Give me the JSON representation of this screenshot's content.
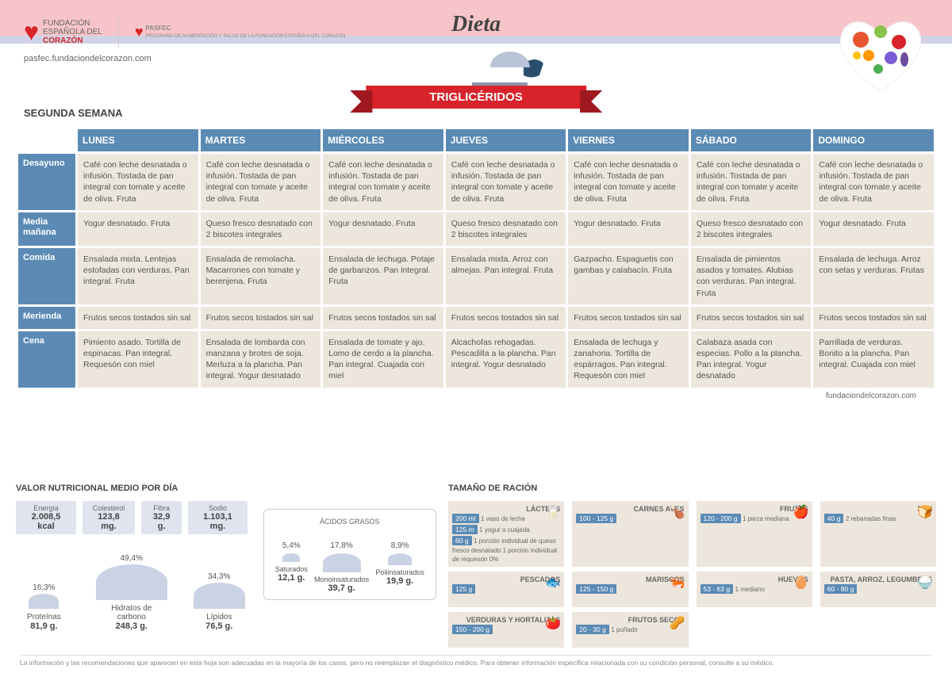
{
  "header": {
    "org1_line1": "FUNDACIÓN",
    "org1_line2": "ESPAÑOLA DEL",
    "org1_line3": "CORAZÓN",
    "org2_name": "PASFEC",
    "org2_sub": "PROGRAMA DE ALIMENTACIÓN Y SALUD DE LA FUNDACIÓN ESPAÑOLA DEL CORAZÓN",
    "url": "pasfec.fundaciondelcorazon.com",
    "title": "Dieta",
    "subtitle": "TRIGLICÉRIDOS",
    "week": "SEGUNDA SEMANA"
  },
  "days": [
    "LUNES",
    "MARTES",
    "MIÉRCOLES",
    "JUEVES",
    "VIERNES",
    "SÁBADO",
    "DOMINGO"
  ],
  "meals": [
    "Desayuno",
    "Media mañana",
    "Comida",
    "Merienda",
    "Cena"
  ],
  "grid": [
    [
      "Café con leche desnatada o infusión. Tostada de pan integral con tomate y aceite de oliva. Fruta",
      "Café con leche desnatada o infusión. Tostada de pan integral con tomate y aceite de oliva. Fruta",
      "Café con leche desnatada o infusión. Tostada de pan integral con tomate y aceite de oliva. Fruta",
      "Café con leche desnatada o infusión. Tostada de pan integral con tomate y aceite de oliva. Fruta",
      "Café con leche desnatada o infusión. Tostada de pan integral con tomate y aceite de oliva. Fruta",
      "Café con leche desnatada o infusión. Tostada de pan integral con tomate y aceite de oliva. Fruta",
      "Café con leche desnatada o infusión. Tostada de pan integral con tomate y aceite de oliva. Fruta"
    ],
    [
      "Yogur desnatado. Fruta",
      "Queso fresco desnatado con 2 biscotes integrales",
      "Yogur desnatado. Fruta",
      "Queso fresco desnatado con 2 biscotes integrales",
      "Yogur desnatado. Fruta",
      "Queso fresco desnatado con 2 biscotes integrales",
      "Yogur desnatado. Fruta"
    ],
    [
      "Ensalada mixta. Lentejas estofadas con verduras. Pan integral. Fruta",
      "Ensalada de remolacha. Macarrones con tomate y berenjena. Fruta",
      "Ensalada de lechuga. Potaje de garbanzos. Pan integral. Fruta",
      "Ensalada mixta. Arroz con almejas. Pan integral. Fruta",
      "Gazpacho. Espaguetis con gambas y calabacín. Fruta",
      "Ensalada de pimientos asados y tomates. Alubias con verduras. Pan integral. Fruta",
      "Ensalada de lechuga. Arroz con setas y verduras. Frutas"
    ],
    [
      "Frutos secos tostados sin sal",
      "Frutos secos tostados sin sal",
      "Frutos secos tostados sin sal",
      "Frutos secos tostados sin sal",
      "Frutos secos tostados sin sal",
      "Frutos secos tostados sin sal",
      "Frutos secos tostados sin sal"
    ],
    [
      "Pimiento asado. Tortilla de espinacas. Pan integral. Requesón con miel",
      "Ensalada de lombarda con manzana y brotes de soja. Merluza a la plancha. Pan integral. Yogur desnatado",
      "Ensalada de tomate y ajo. Lomo de cerdo a la plancha. Pan integral. Cuajada con miel",
      "Alcachofas rehogadas. Pescadilla a la plancha. Pan integral. Yogur desnatado",
      "Ensalada de lechuga y zanahoria. Tortilla de espárragos. Pan integral. Requesón con miel",
      "Calabaza asada con especias. Pollo a la plancha. Pan integral. Yogur desnatado",
      "Parrillada de verduras. Bonito a la plancha. Pan integral. Cuajada con miel"
    ]
  ],
  "footer_url": "fundaciondelcorazon.com",
  "nutri": {
    "title": "VALOR NUTRICIONAL MEDIO POR DÍA",
    "boxes": [
      {
        "lbl": "Energía",
        "val": "2.008,5 kcal"
      },
      {
        "lbl": "Colesterol",
        "val": "123,8 mg."
      },
      {
        "lbl": "Fibra",
        "val": "32,9 g."
      },
      {
        "lbl": "Sodio",
        "val": "1.103,1 mg."
      }
    ],
    "humps": [
      {
        "pct": "16,3%",
        "name": "Proteínas",
        "g": "81,9 g.",
        "w": 38,
        "h": 19
      },
      {
        "pct": "49,4%",
        "name": "Hidratos de carbono",
        "g": "248,3 g.",
        "w": 90,
        "h": 45
      },
      {
        "pct": "34,3%",
        "name": "Lípidos",
        "g": "76,5 g.",
        "w": 65,
        "h": 33
      }
    ],
    "acids_title": "ÁCIDOS GRASOS",
    "acids": [
      {
        "pct": "5,4%",
        "name": "Saturados",
        "g": "12,1 g.",
        "w": 22,
        "h": 11
      },
      {
        "pct": "17,8%",
        "name": "Monoinsaturados",
        "g": "39,7 g.",
        "w": 48,
        "h": 24
      },
      {
        "pct": "8,9%",
        "name": "Poliinsaturados",
        "g": "19,9 g.",
        "w": 30,
        "h": 15
      }
    ]
  },
  "portions": {
    "title": "TAMAÑO DE RACIÓN",
    "items": [
      {
        "cat": "LÁCTEOS",
        "icon": "🥛",
        "lines": [
          {
            "b": "200 ml",
            "d": "1 vaso de leche"
          },
          {
            "b": "125 m",
            "d": "1 yogur o cuajada"
          },
          {
            "b": "60 g",
            "d": "1 porción individual de queso fresco desnatado 1 porción individual de requesón 0%"
          }
        ]
      },
      {
        "cat": "CARNES AVES",
        "icon": "🍗",
        "lines": [
          {
            "b": "100 - 125 g",
            "d": ""
          }
        ]
      },
      {
        "cat": "FRUTAS",
        "icon": "🍎",
        "lines": [
          {
            "b": "120 - 200 g",
            "d": "1 pieza mediana"
          }
        ]
      },
      {
        "cat": "PAN",
        "icon": "🍞",
        "lines": [
          {
            "b": "40 g",
            "d": "2 rebanadas finas"
          }
        ]
      },
      {
        "cat": "PESCADOS",
        "icon": "🐟",
        "lines": [
          {
            "b": "125 g",
            "d": ""
          }
        ]
      },
      {
        "cat": "MARISCOS",
        "icon": "🦐",
        "lines": [
          {
            "b": "125 - 150 g",
            "d": ""
          }
        ]
      },
      {
        "cat": "HUEVOS",
        "icon": "🥚",
        "lines": [
          {
            "b": "53 - 63 g",
            "d": "1 mediano"
          }
        ]
      },
      {
        "cat": "PASTA, ARROZ, LEGUMBRES",
        "icon": "🍚",
        "lines": [
          {
            "b": "60 - 80 g",
            "d": ""
          }
        ]
      },
      {
        "cat": "VERDURAS Y HORTALIZAS",
        "icon": "🍅",
        "lines": [
          {
            "b": "150 - 200 g",
            "d": ""
          }
        ]
      },
      {
        "cat": "FRUTOS SECOS",
        "icon": "🥜",
        "lines": [
          {
            "b": "20 - 30 g",
            "d": "1 puñado"
          }
        ]
      }
    ]
  },
  "disclaimer": "La información y las recomendaciones que aparecen en esta hoja son adecuadas en la mayoría de los casos, pero no reemplazan el diagnóstico médico. Para obtener información específica relacionada con su condición personal, consulte a su médico."
}
